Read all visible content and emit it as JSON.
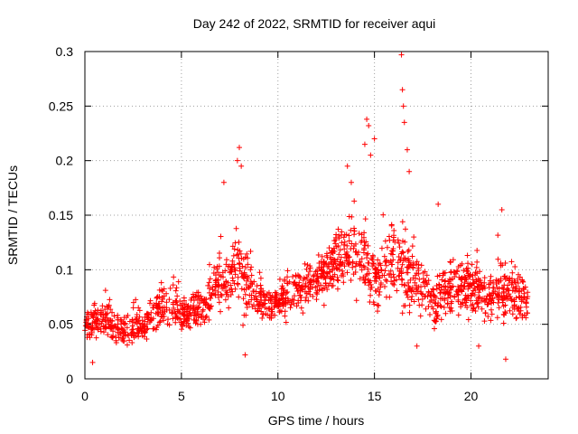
{
  "chart_data": {
    "type": "scatter",
    "title": "Day 242 of 2022, SRMTID for receiver aqui",
    "xlabel": "GPS time / hours",
    "ylabel": "SRMTID / TECUs",
    "xlim": [
      0,
      24
    ],
    "ylim": [
      0,
      0.3
    ],
    "xticks": [
      "0",
      "5",
      "10",
      "15",
      "20"
    ],
    "xtick_values": [
      0,
      5,
      10,
      15,
      20
    ],
    "yticks": [
      "0",
      "0.05",
      "0.1",
      "0.15",
      "0.2",
      "0.25",
      "0.3"
    ],
    "ytick_values": [
      0,
      0.05,
      0.1,
      0.15,
      0.2,
      0.25,
      0.3
    ],
    "grid": true,
    "marker": "+",
    "series": [
      {
        "name": "SRMTID",
        "color": "#ff0000",
        "x_range": [
          0,
          22.95
        ],
        "envelope": [
          {
            "hour": 0,
            "mean": 0.05,
            "spread": 0.02
          },
          {
            "hour": 1,
            "mean": 0.055,
            "spread": 0.022
          },
          {
            "hour": 2,
            "mean": 0.045,
            "spread": 0.018
          },
          {
            "hour": 3,
            "mean": 0.045,
            "spread": 0.018
          },
          {
            "hour": 4,
            "mean": 0.07,
            "spread": 0.025
          },
          {
            "hour": 5,
            "mean": 0.06,
            "spread": 0.02
          },
          {
            "hour": 6,
            "mean": 0.065,
            "spread": 0.02
          },
          {
            "hour": 7,
            "mean": 0.085,
            "spread": 0.03
          },
          {
            "hour": 8,
            "mean": 0.1,
            "spread": 0.045
          },
          {
            "hour": 9,
            "mean": 0.07,
            "spread": 0.025
          },
          {
            "hour": 10,
            "mean": 0.07,
            "spread": 0.022
          },
          {
            "hour": 11,
            "mean": 0.08,
            "spread": 0.025
          },
          {
            "hour": 12,
            "mean": 0.09,
            "spread": 0.025
          },
          {
            "hour": 13,
            "mean": 0.11,
            "spread": 0.03
          },
          {
            "hour": 14,
            "mean": 0.12,
            "spread": 0.04
          },
          {
            "hour": 15,
            "mean": 0.09,
            "spread": 0.035
          },
          {
            "hour": 16,
            "mean": 0.11,
            "spread": 0.045
          },
          {
            "hour": 17,
            "mean": 0.09,
            "spread": 0.035
          },
          {
            "hour": 18,
            "mean": 0.075,
            "spread": 0.03
          },
          {
            "hour": 19,
            "mean": 0.08,
            "spread": 0.03
          },
          {
            "hour": 20,
            "mean": 0.085,
            "spread": 0.03
          },
          {
            "hour": 21,
            "mean": 0.075,
            "spread": 0.028
          },
          {
            "hour": 22,
            "mean": 0.08,
            "spread": 0.035
          },
          {
            "hour": 23,
            "mean": 0.07,
            "spread": 0.025
          }
        ],
        "notable_points": [
          {
            "x": 8.0,
            "y": 0.212
          },
          {
            "x": 7.9,
            "y": 0.2
          },
          {
            "x": 8.1,
            "y": 0.195
          },
          {
            "x": 7.2,
            "y": 0.18
          },
          {
            "x": 14.6,
            "y": 0.238
          },
          {
            "x": 14.7,
            "y": 0.232
          },
          {
            "x": 14.5,
            "y": 0.215
          },
          {
            "x": 14.8,
            "y": 0.205
          },
          {
            "x": 15.0,
            "y": 0.22
          },
          {
            "x": 16.4,
            "y": 0.297
          },
          {
            "x": 16.45,
            "y": 0.265
          },
          {
            "x": 16.5,
            "y": 0.25
          },
          {
            "x": 16.55,
            "y": 0.235
          },
          {
            "x": 16.7,
            "y": 0.21
          },
          {
            "x": 16.8,
            "y": 0.19
          },
          {
            "x": 13.6,
            "y": 0.195
          },
          {
            "x": 13.8,
            "y": 0.18
          },
          {
            "x": 21.6,
            "y": 0.155
          },
          {
            "x": 18.3,
            "y": 0.16
          },
          {
            "x": 0.4,
            "y": 0.015
          },
          {
            "x": 21.8,
            "y": 0.018
          },
          {
            "x": 8.3,
            "y": 0.022
          },
          {
            "x": 17.2,
            "y": 0.03
          },
          {
            "x": 20.4,
            "y": 0.03
          }
        ],
        "approx_point_count": 1700
      }
    ]
  }
}
